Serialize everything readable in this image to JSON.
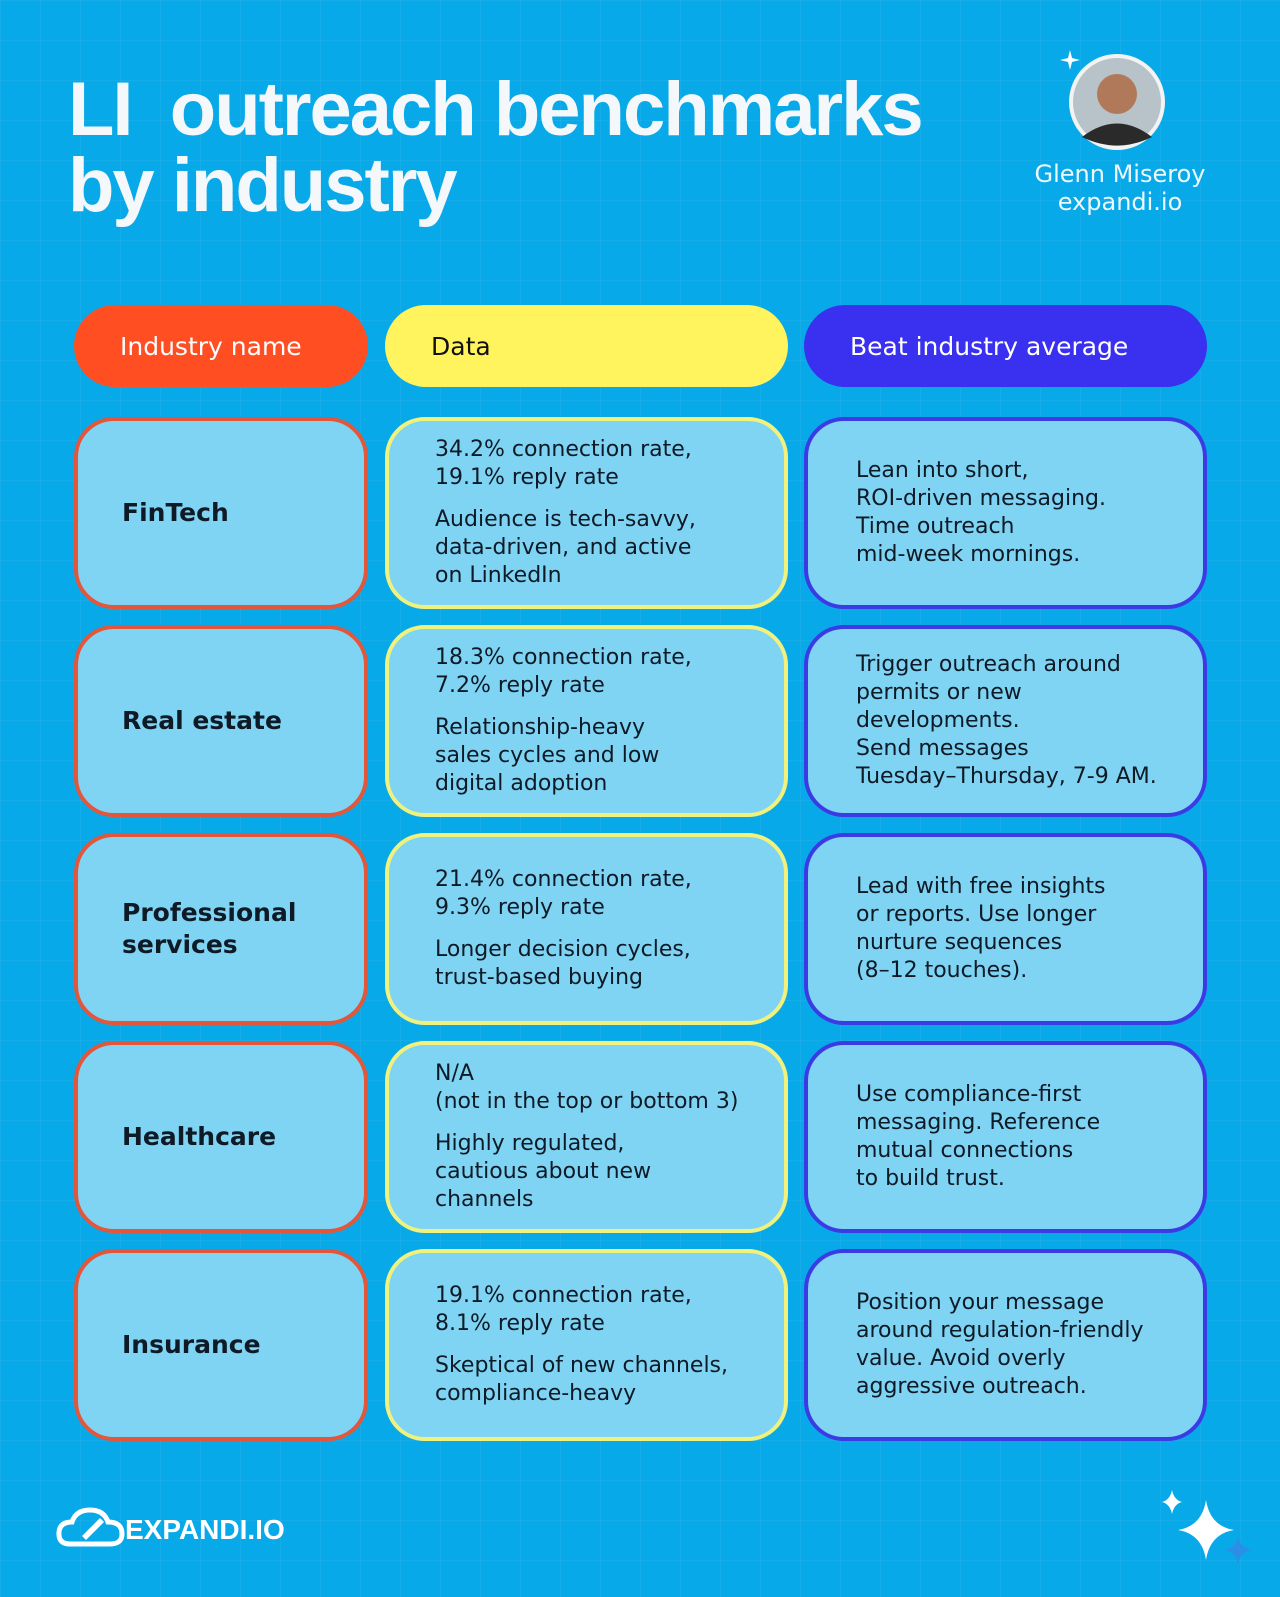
{
  "header": {
    "title_lines": [
      "LI  outreach benchmarks",
      "by industry"
    ],
    "author": "Glenn Miseroy",
    "site": "expandi.io"
  },
  "table": {
    "columns": [
      "Industry name",
      "Data",
      "Beat industry average"
    ],
    "rows": [
      {
        "industry": [
          "FinTech"
        ],
        "stats": [
          "34.2% connection rate,",
          "19.1% reply rate"
        ],
        "notes": [
          "Audience is tech-savvy,",
          "data-driven, and active",
          "on LinkedIn"
        ],
        "tip": [
          "Lean into short,",
          "ROI-driven messaging.",
          "Time outreach",
          "mid-week mornings."
        ]
      },
      {
        "industry": [
          "Real estate"
        ],
        "stats": [
          "18.3% connection rate,",
          "7.2% reply rate"
        ],
        "notes": [
          "Relationship-heavy",
          "sales cycles and low",
          "digital adoption"
        ],
        "tip": [
          "Trigger outreach around",
          "permits or new",
          "developments.",
          "Send messages",
          "Tuesday–Thursday, 7-9 AM."
        ]
      },
      {
        "industry": [
          "Professional",
          "services"
        ],
        "stats": [
          "21.4% connection rate,",
          "9.3% reply rate"
        ],
        "notes": [
          "Longer decision cycles,",
          "trust-based buying"
        ],
        "tip": [
          "Lead with free insights",
          "or reports. Use longer",
          "nurture sequences",
          "(8–12 touches)."
        ]
      },
      {
        "industry": [
          "Healthcare"
        ],
        "stats": [
          "N/A",
          "(not in the top or bottom 3)"
        ],
        "notes": [
          "Highly regulated,",
          "cautious about new",
          "channels"
        ],
        "tip": [
          "Use compliance-first",
          "messaging. Reference",
          "mutual connections",
          "to build trust."
        ]
      },
      {
        "industry": [
          "Insurance"
        ],
        "stats": [
          "19.1% connection rate,",
          "8.1% reply rate"
        ],
        "notes": [
          "Skeptical of new channels,",
          "compliance-heavy"
        ],
        "tip": [
          "Position your message",
          "around regulation-friendly",
          "value. Avoid overly",
          "aggressive outreach."
        ]
      }
    ]
  },
  "footer": {
    "logo": "EXPANDI.IO"
  }
}
